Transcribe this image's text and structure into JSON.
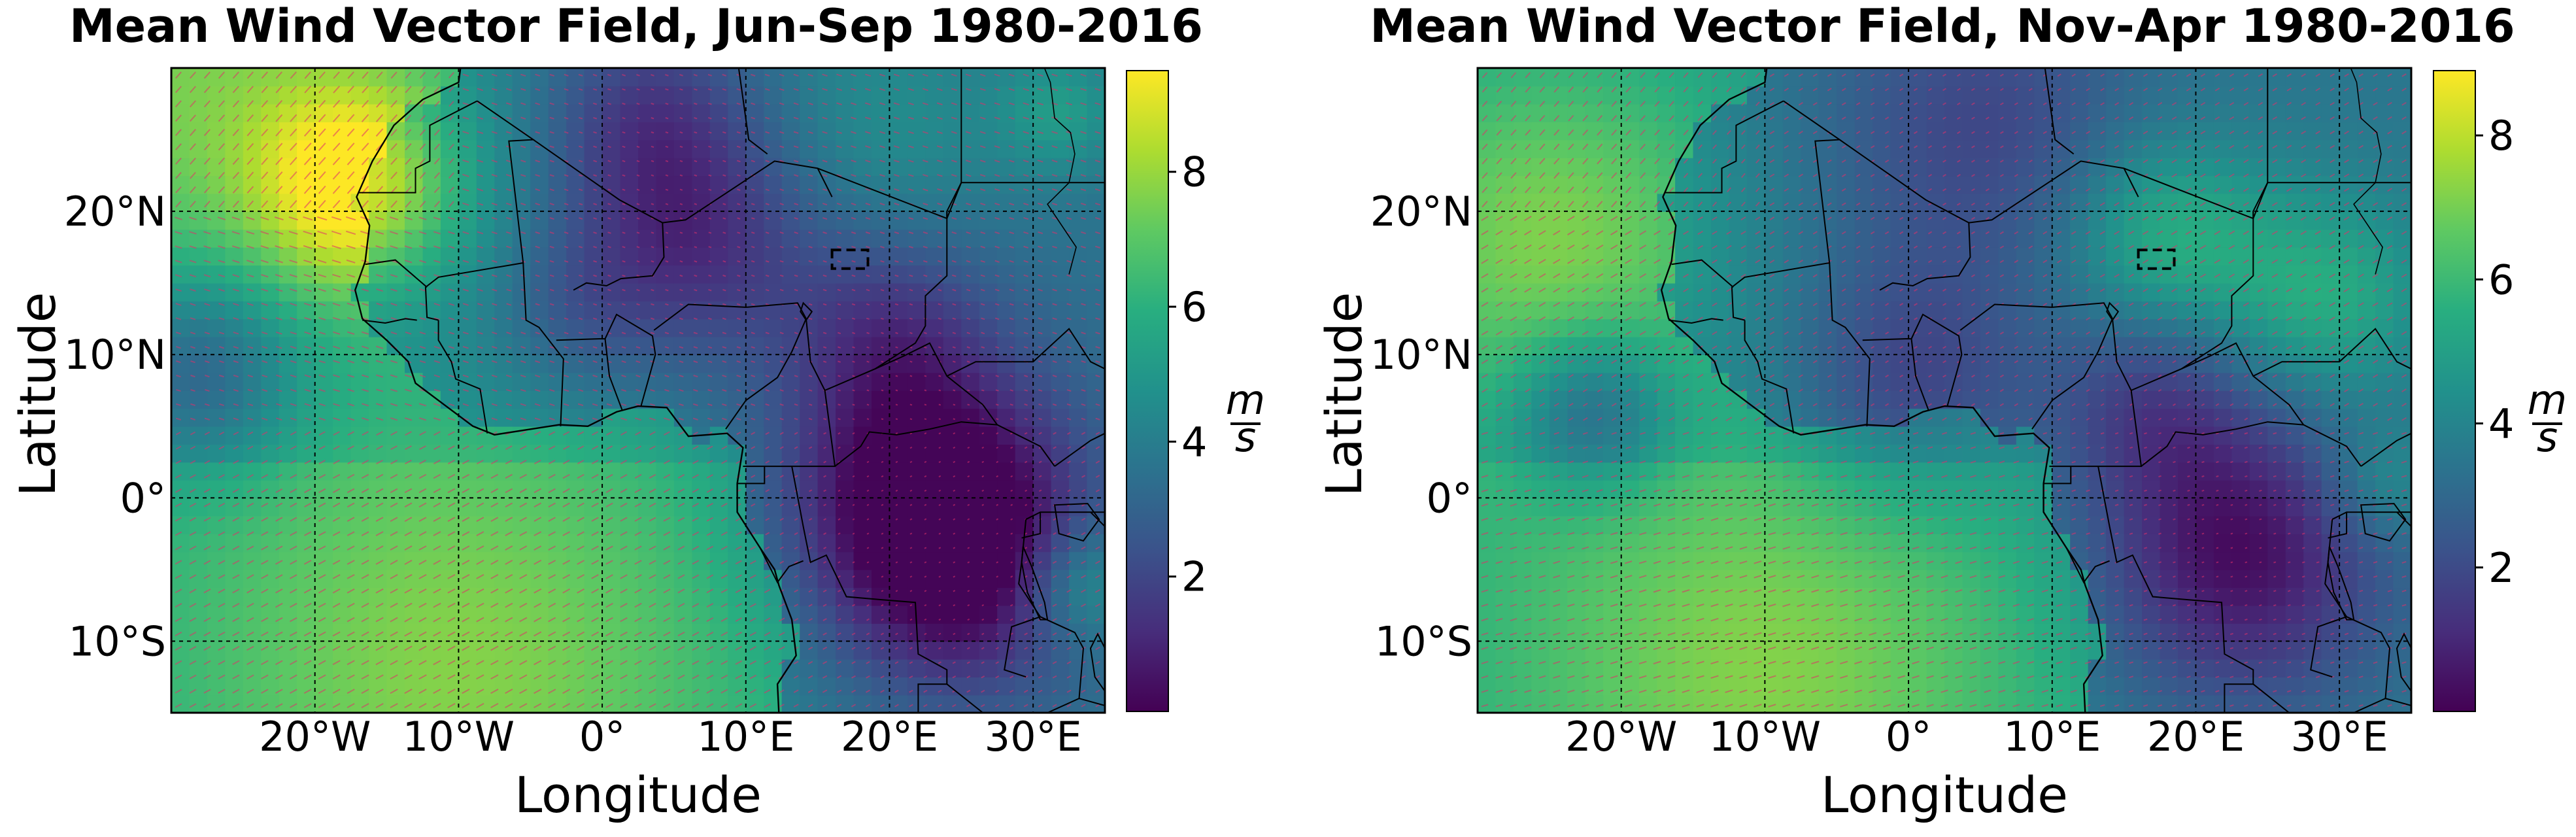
{
  "colors": {
    "colormap": "viridis",
    "arrow_color": "#e0306a",
    "gridline_color": "#000000",
    "coastline_color": "#000000"
  },
  "chart_data": [
    {
      "type": "heatmap",
      "subtype": "quiver-over-wind-speed-map",
      "title": "Mean Wind Vector Field, Jun-Sep 1980-2016",
      "xlabel": "Longitude",
      "ylabel": "Latitude",
      "xlim": [
        -30,
        35
      ],
      "ylim": [
        -15,
        30
      ],
      "xticks": [
        -20,
        -10,
        0,
        10,
        20,
        30
      ],
      "xtick_labels": [
        "20°W",
        "10°W",
        "0°",
        "10°E",
        "20°E",
        "30°E"
      ],
      "yticks": [
        -10,
        0,
        10,
        20
      ],
      "ytick_labels": [
        "10°S",
        "0°",
        "10°N",
        "20°N"
      ],
      "grid": true,
      "colorbar": {
        "label_num": "m",
        "label_den": "s",
        "ticks": [
          2,
          4,
          6,
          8
        ],
        "range": [
          0,
          9.5
        ]
      },
      "study_box": {
        "lon": [
          16,
          18.5
        ],
        "lat": [
          16,
          17.3
        ]
      },
      "wind_speed_features": [
        {
          "lon": -17,
          "lat": 22,
          "sigma": 5,
          "value": 4.0
        },
        {
          "lon": -30,
          "lat": 30,
          "sigma": 14,
          "value": 2.5
        },
        {
          "lon": -28,
          "lat": 9,
          "sigma": 5,
          "value": -2.8
        },
        {
          "lon": -10,
          "lat": -12,
          "sigma": 14,
          "value": 2.2
        },
        {
          "lon": 6,
          "lat": 18,
          "sigma": 6,
          "value": -2.5
        },
        {
          "lon": -2,
          "lat": 13,
          "sigma": 4,
          "value": -1.0
        },
        {
          "lon": 20,
          "lat": 12,
          "sigma": 5,
          "value": -1.6
        },
        {
          "lon": 22,
          "lat": 1,
          "sigma": 7,
          "value": -3.5
        },
        {
          "lon": 25,
          "lat": -5,
          "sigma": 6,
          "value": -3.0
        },
        {
          "lon": 3,
          "lat": 27,
          "sigma": 5,
          "value": -1.8
        },
        {
          "lon": 33,
          "lat": -6,
          "sigma": 3,
          "value": 2.0
        },
        {
          "lon": 32,
          "lat": 27,
          "sigma": 3,
          "value": 1.5
        },
        {
          "lon": 20,
          "lat": 26,
          "sigma": 6,
          "value": 1.0
        }
      ],
      "wind_speed_base": 4.6,
      "land_reduction": 1.0,
      "ocean_boost": 0.9
    },
    {
      "type": "heatmap",
      "subtype": "quiver-over-wind-speed-map",
      "title": "Mean Wind Vector Field, Nov-Apr 1980-2016",
      "xlabel": "Longitude",
      "ylabel": "Latitude",
      "xlim": [
        -30,
        35
      ],
      "ylim": [
        -15,
        30
      ],
      "xticks": [
        -20,
        -10,
        0,
        10,
        20,
        30
      ],
      "xtick_labels": [
        "20°W",
        "10°W",
        "0°",
        "10°E",
        "20°E",
        "30°E"
      ],
      "yticks": [
        -10,
        0,
        10,
        20
      ],
      "ytick_labels": [
        "10°S",
        "0°",
        "10°N",
        "20°N"
      ],
      "grid": true,
      "colorbar": {
        "label_num": "m",
        "label_den": "s",
        "ticks": [
          2,
          4,
          6,
          8
        ],
        "range": [
          0,
          8.9
        ]
      },
      "study_box": {
        "lon": [
          16,
          18.5
        ],
        "lat": [
          16,
          17.3
        ]
      },
      "wind_speed_features": [
        {
          "lon": -25,
          "lat": 18,
          "sigma": 9,
          "value": 2.2
        },
        {
          "lon": 18,
          "lat": 18,
          "sigma": 5,
          "value": 2.2
        },
        {
          "lon": 29,
          "lat": 14,
          "sigma": 5,
          "value": 2.0
        },
        {
          "lon": -10,
          "lat": -12,
          "sigma": 12,
          "value": 1.8
        },
        {
          "lon": -22,
          "lat": 6,
          "sigma": 4,
          "value": -2.6
        },
        {
          "lon": 0,
          "lat": 8,
          "sigma": 6,
          "value": -1.8
        },
        {
          "lon": 23,
          "lat": -4,
          "sigma": 7,
          "value": -3.2
        },
        {
          "lon": 5,
          "lat": 26,
          "sigma": 8,
          "value": -1.6
        },
        {
          "lon": 17,
          "lat": 7,
          "sigma": 5,
          "value": -1.6
        },
        {
          "lon": 33,
          "lat": 1,
          "sigma": 3,
          "value": 1.2
        }
      ],
      "wind_speed_base": 4.6,
      "land_reduction": 1.1,
      "ocean_boost": 0.8
    }
  ]
}
